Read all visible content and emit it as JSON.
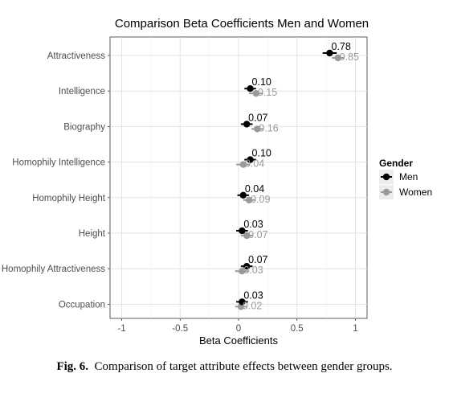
{
  "chart_data": {
    "type": "scatter",
    "title": "Comparison Beta Coefficients Men and Women",
    "xlabel": "Beta Coefficients",
    "ylabel": "",
    "xlim": [
      -1.1,
      1.1
    ],
    "xticks": [
      "-1",
      "-0.5",
      "0",
      "0.5",
      "1"
    ],
    "xtick_values": [
      -1,
      -0.5,
      0,
      0.5,
      1
    ],
    "categories": [
      "Attractiveness",
      "Intelligence",
      "Biography",
      "Homophily Intelligence",
      "Homophily Height",
      "Height",
      "Homophily Attractiveness",
      "Occupation"
    ],
    "grid": true,
    "legend": {
      "title": "Gender",
      "placement": "right"
    },
    "series": [
      {
        "name": "Men",
        "color": "#000000",
        "values": [
          0.78,
          0.1,
          0.07,
          0.1,
          0.04,
          0.03,
          0.07,
          0.03
        ],
        "ci_low": [
          0.72,
          0.05,
          0.02,
          0.05,
          -0.01,
          -0.02,
          0.02,
          -0.02
        ],
        "ci_high": [
          0.84,
          0.15,
          0.12,
          0.15,
          0.09,
          0.08,
          0.12,
          0.08
        ],
        "labels": [
          "0.78",
          "0.10",
          "0.07",
          "0.10",
          "0.04",
          "0.03",
          "0.07",
          "0.03"
        ]
      },
      {
        "name": "Women",
        "color": "#9a9a9a",
        "values": [
          0.85,
          0.15,
          0.16,
          0.04,
          0.09,
          0.07,
          0.03,
          0.02
        ],
        "ci_low": [
          0.8,
          0.09,
          0.11,
          -0.02,
          0.04,
          0.02,
          -0.03,
          -0.03
        ],
        "ci_high": [
          0.9,
          0.21,
          0.21,
          0.1,
          0.14,
          0.12,
          0.09,
          0.07
        ],
        "labels": [
          "0.85",
          "0.15",
          "0.16",
          "0.04",
          "0.09",
          "0.07",
          "0.03",
          "0.02"
        ]
      }
    ]
  },
  "caption": {
    "label": "Fig. 6.",
    "text": "Comparison of target attribute effects between gender groups."
  }
}
